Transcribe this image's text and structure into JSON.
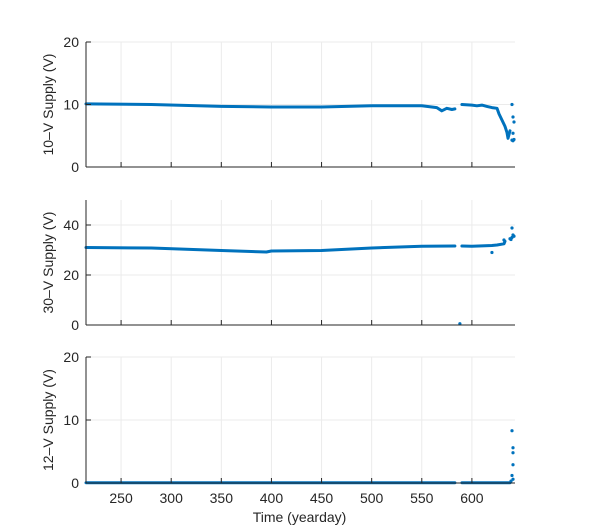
{
  "chart_data": [
    {
      "type": "scatter",
      "ylabel": "10–V Supply (V)",
      "xlabel": "",
      "xlim": [
        215,
        643
      ],
      "ylim": [
        0,
        20
      ],
      "xticks": [
        250,
        300,
        350,
        400,
        450,
        500,
        550,
        600
      ],
      "xticklabels": [],
      "yticks": [
        0,
        10,
        20
      ],
      "yticklabels": [
        "0",
        "10",
        "20"
      ],
      "grid": true,
      "color": "#0072BD",
      "segments": [
        {
          "x": [
            215,
            280,
            350,
            400,
            450,
            500,
            550,
            565,
            570,
            575,
            580,
            583
          ],
          "y": [
            10.1,
            10.0,
            9.7,
            9.6,
            9.6,
            9.8,
            9.8,
            9.5,
            9.0,
            9.4,
            9.2,
            9.3
          ]
        },
        {
          "x": [
            590,
            600,
            605,
            610,
            615,
            620,
            625,
            627,
            630,
            633,
            635,
            636,
            638
          ],
          "y": [
            10.0,
            9.9,
            9.8,
            9.9,
            9.7,
            9.5,
            9.4,
            8.5,
            7.5,
            6.5,
            5.5,
            4.6,
            5.8
          ]
        }
      ],
      "points": [
        {
          "x": 640,
          "y": 4.3
        },
        {
          "x": 641,
          "y": 4.2
        },
        {
          "x": 642,
          "y": 4.4
        },
        {
          "x": 640,
          "y": 10.0
        },
        {
          "x": 641,
          "y": 8.0
        },
        {
          "x": 642,
          "y": 7.2
        },
        {
          "x": 641,
          "y": 5.4
        }
      ]
    },
    {
      "type": "scatter",
      "ylabel": "30–V Supply (V)",
      "xlabel": "",
      "xlim": [
        215,
        643
      ],
      "ylim": [
        0,
        50
      ],
      "xticks": [
        250,
        300,
        350,
        400,
        450,
        500,
        550,
        600
      ],
      "xticklabels": [],
      "yticks": [
        0,
        20,
        40
      ],
      "yticklabels": [
        "0",
        "20",
        "40"
      ],
      "grid": true,
      "color": "#0072BD",
      "segments": [
        {
          "x": [
            215,
            280,
            350,
            395,
            400,
            450,
            500,
            550,
            583
          ],
          "y": [
            31.0,
            30.8,
            29.8,
            29.2,
            29.6,
            29.8,
            30.8,
            31.5,
            31.6
          ]
        },
        {
          "x": [
            590,
            600,
            620,
            625,
            632,
            633
          ],
          "y": [
            31.6,
            31.5,
            31.8,
            32.0,
            32.5,
            33.5
          ]
        }
      ],
      "points": [
        {
          "x": 588,
          "y": 0.5
        },
        {
          "x": 620,
          "y": 29.0
        },
        {
          "x": 632,
          "y": 34.0
        },
        {
          "x": 638,
          "y": 34.5
        },
        {
          "x": 640,
          "y": 35.0
        },
        {
          "x": 641,
          "y": 36.0
        },
        {
          "x": 642,
          "y": 35.5
        },
        {
          "x": 640,
          "y": 38.8
        },
        {
          "x": 639,
          "y": 34.2
        }
      ]
    },
    {
      "type": "scatter",
      "ylabel": "12–V Supply (V)",
      "xlabel": "Time (yearday)",
      "xlim": [
        215,
        643
      ],
      "ylim": [
        0,
        20
      ],
      "xticks": [
        250,
        300,
        350,
        400,
        450,
        500,
        550,
        600
      ],
      "xticklabels": [
        "250",
        "300",
        "350",
        "400",
        "450",
        "500",
        "550",
        "600"
      ],
      "yticks": [
        0,
        10,
        20
      ],
      "yticklabels": [
        "0",
        "10",
        "20"
      ],
      "grid": true,
      "color": "#0072BD",
      "segments": [
        {
          "x": [
            215,
            583
          ],
          "y": [
            0.05,
            0.05
          ]
        },
        {
          "x": [
            590,
            638
          ],
          "y": [
            0.05,
            0.05
          ]
        }
      ],
      "points": [
        {
          "x": 640,
          "y": 8.3
        },
        {
          "x": 641,
          "y": 5.6
        },
        {
          "x": 641,
          "y": 4.8
        },
        {
          "x": 641,
          "y": 2.9
        },
        {
          "x": 640,
          "y": 1.2
        },
        {
          "x": 641,
          "y": 0.6
        },
        {
          "x": 639,
          "y": 0.3
        }
      ]
    }
  ]
}
